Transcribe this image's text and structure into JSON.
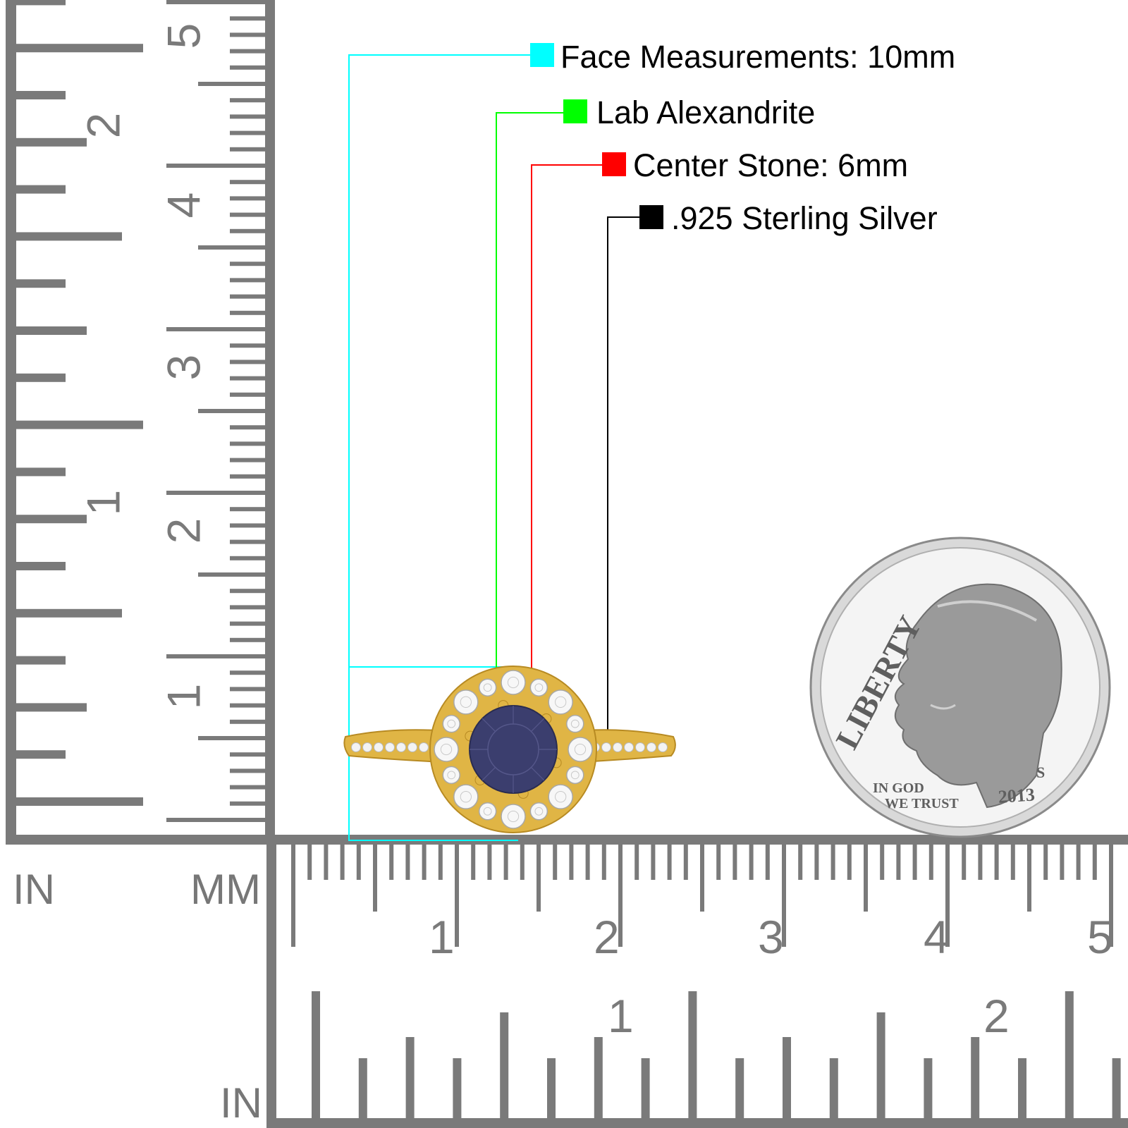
{
  "legend": [
    {
      "label": "Face Measurements: 10mm",
      "color": "#00FFFF"
    },
    {
      "label": "Lab Alexandrite",
      "color": "#00FF00"
    },
    {
      "label": "Center Stone: 6mm",
      "color": "#FF0000"
    },
    {
      "label": ".925 Sterling Silver",
      "color": "#000000"
    }
  ],
  "rulers": {
    "left_in_label": "IN",
    "left_mm_label": "MM",
    "bottom_in_label": "IN",
    "vertical_mm_numbers": [
      "1",
      "2",
      "3",
      "4",
      "5"
    ],
    "vertical_in_numbers": [
      "1",
      "2"
    ],
    "horizontal_mm_numbers": [
      "1",
      "2",
      "3",
      "4",
      "5"
    ],
    "horizontal_in_numbers": [
      "1",
      "2"
    ],
    "ruler_color": "#7a7a7a"
  },
  "coin": {
    "liberty": "LIBERTY",
    "motto_line1": "IN GOD",
    "motto_line2": "WE TRUST",
    "year": "2013",
    "mint_mark": "S"
  },
  "ring": {
    "metal_color": "#E0B545",
    "center_stone_color": "#3B3E6E"
  }
}
